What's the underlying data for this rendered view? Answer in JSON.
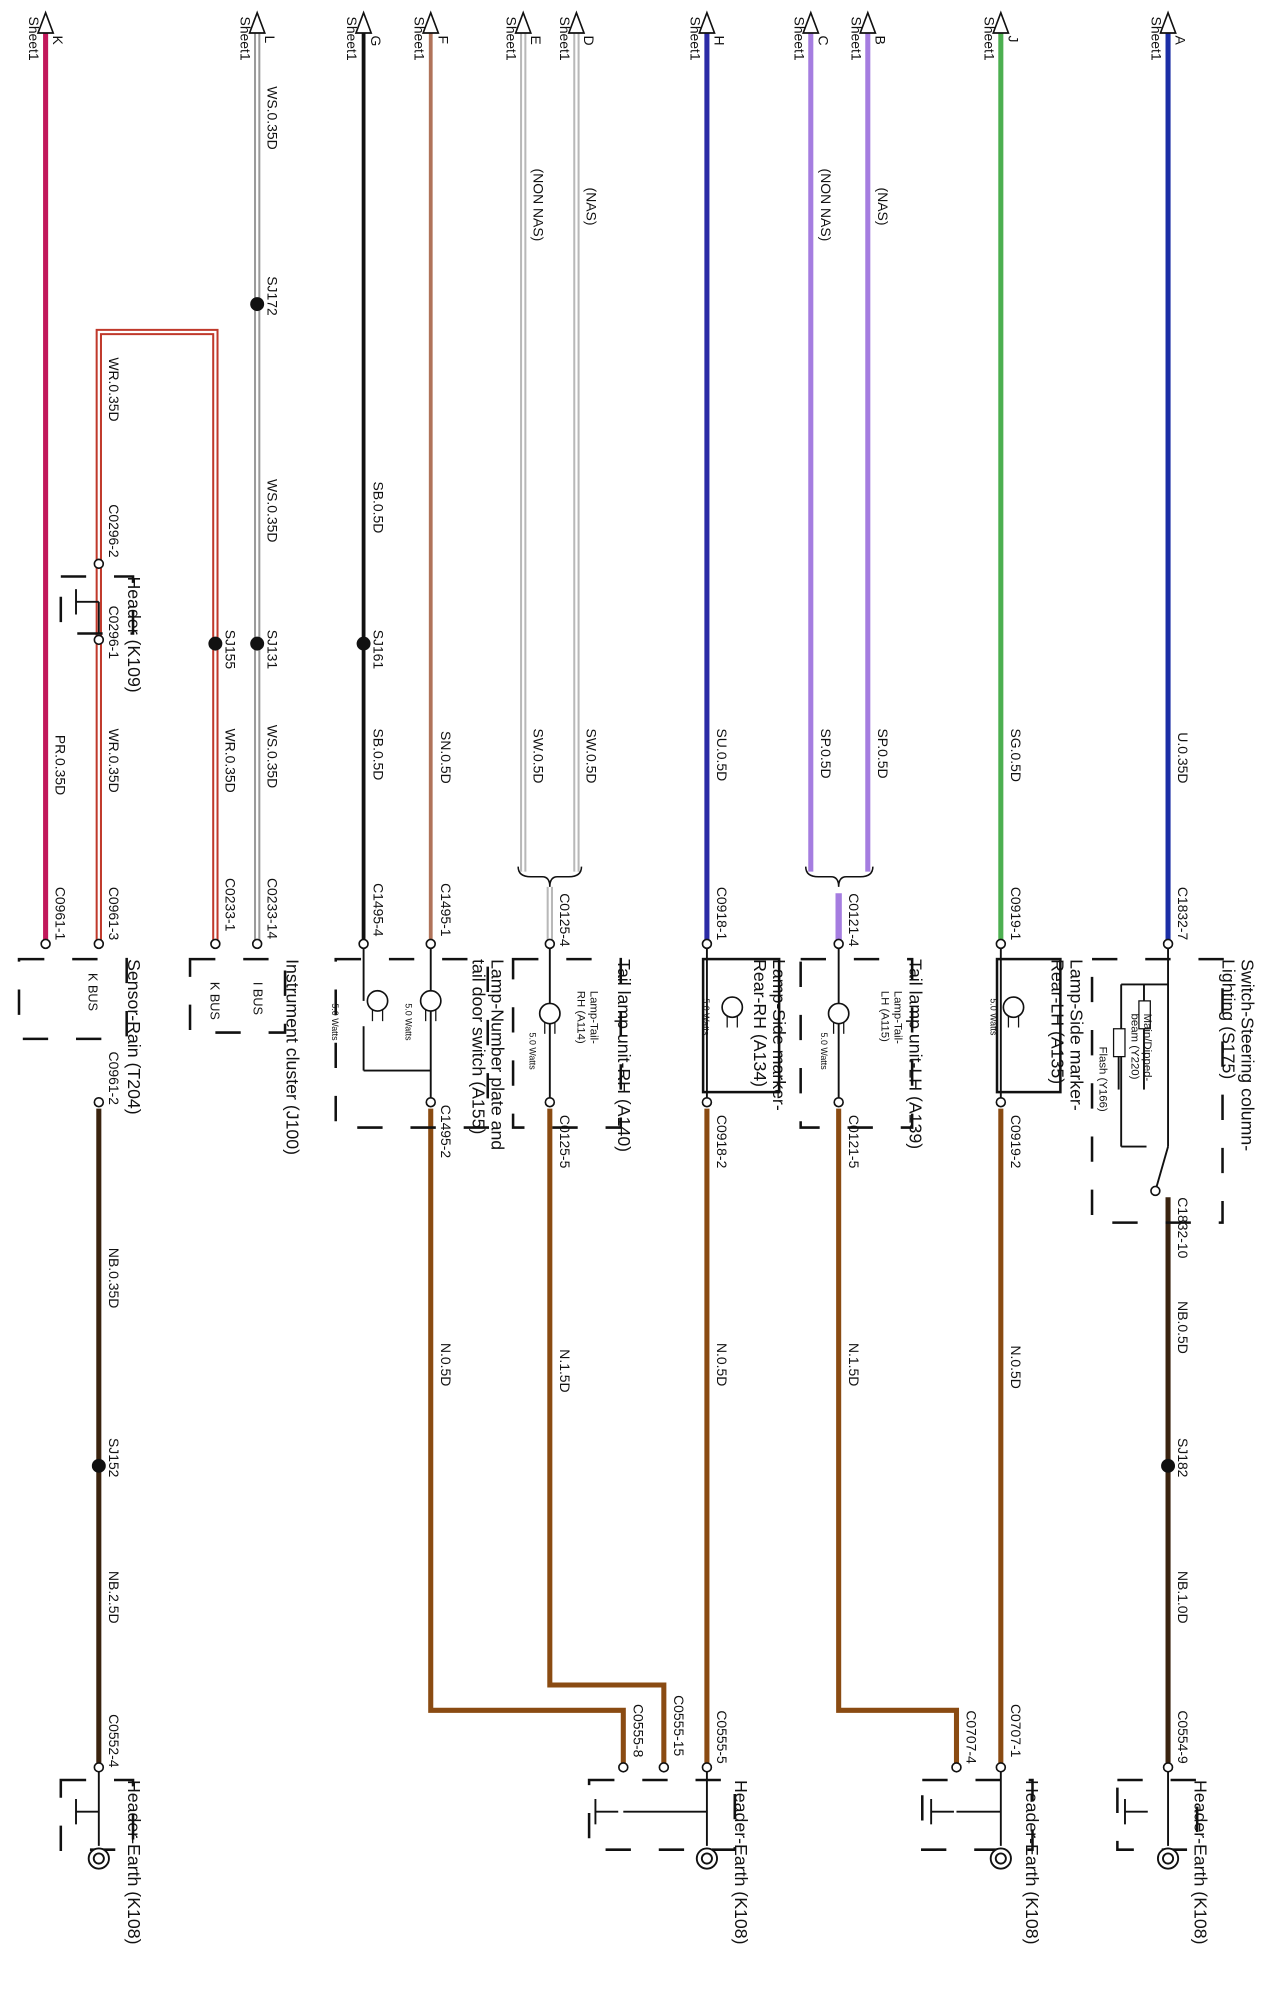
{
  "inputs": [
    {
      "letter": "K",
      "sheet": "Sheet1"
    },
    {
      "letter": "L",
      "sheet": "Sheet1"
    },
    {
      "letter": "G",
      "sheet": "Sheet1"
    },
    {
      "letter": "F",
      "sheet": "Sheet1"
    },
    {
      "letter": "E",
      "sheet": "Sheet1"
    },
    {
      "letter": "D",
      "sheet": "Sheet1"
    },
    {
      "letter": "H",
      "sheet": "Sheet1"
    },
    {
      "letter": "C",
      "sheet": "Sheet1"
    },
    {
      "letter": "B",
      "sheet": "Sheet1"
    },
    {
      "letter": "J",
      "sheet": "Sheet1"
    },
    {
      "letter": "A",
      "sheet": "Sheet1"
    }
  ],
  "wire_labels": [
    "PR.0.35D",
    "WR.0.35D",
    "WR.0.35D",
    "WR.0.35D",
    "WS.0.35D",
    "WS.0.35D",
    "WS.0.35D",
    "SB.0.5D",
    "SB.0.5D",
    "SN.0.5D",
    "(NON NAS)",
    "SW.0.5D",
    "(NAS)",
    "SW.0.5D",
    "SU.0.5D",
    "(NON NAS)",
    "SP.0.5D",
    "(NAS)",
    "SP.0.5D",
    "SG.0.5D",
    "U.0.35D",
    "NB.0.35D",
    "NB.2.5D",
    "N.0.5D",
    "N.1.5D",
    "N.0.5D",
    "N.1.5D",
    "N.0.5D",
    "NB.0.5D",
    "NB.1.0D"
  ],
  "connectors": [
    "C0296-2",
    "C0296-1",
    "C0961-1",
    "C0961-3",
    "C0961-2",
    "C0233-1",
    "C0233-14",
    "C1495-4",
    "C1495-1",
    "C1495-2",
    "C0125-4",
    "C0125-5",
    "C0918-1",
    "C0918-2",
    "C0121-4",
    "C0121-5",
    "C0919-1",
    "C0919-2",
    "C1832-7",
    "C1832-10",
    "C0552-4",
    "C0555-8",
    "C0555-15",
    "C0555-5",
    "C0707-4",
    "C0707-1",
    "C0554-9"
  ],
  "splices": [
    "SJ172",
    "SJ155",
    "SJ131",
    "SJ161",
    "SJ152",
    "SJ182"
  ],
  "components": [
    {
      "lines": [
        "Header (K109)"
      ]
    },
    {
      "lines": [
        "Sensor-Rain (T204)"
      ]
    },
    {
      "lines": [
        "Instrument cluster (J100)"
      ]
    },
    {
      "lines": [
        "Lamp-Number plate and",
        "tail door switch (A155)"
      ]
    },
    {
      "lines": [
        "Tail lamp unit-RH (A140)"
      ]
    },
    {
      "lines": [
        "Lamp-Side marker-",
        "Rear-RH (A134)"
      ]
    },
    {
      "lines": [
        "Tail lamp unit-LH (A139)"
      ]
    },
    {
      "lines": [
        "Lamp-Side marker-",
        "Rear-LH (A135)"
      ]
    },
    {
      "lines": [
        "Switch-Steering column-",
        "Lighting (S175)"
      ]
    },
    {
      "lines": [
        "Header-Earth (K108)"
      ]
    },
    {
      "lines": [
        "Header-Earth (K108)"
      ]
    },
    {
      "lines": [
        "Header-Earth (K108)"
      ]
    },
    {
      "lines": [
        "Header-Earth (K108)"
      ]
    }
  ],
  "parts": [
    {
      "lines": [
        "Lamp-Tail-",
        "RH (A114)"
      ]
    },
    {
      "lines": [
        "Lamp-Tail-",
        "LH (A115)"
      ]
    },
    {
      "lines": [
        "Main/Dipped-",
        "beam (Y220)"
      ]
    },
    {
      "lines": [
        "Flash (Y166)"
      ]
    }
  ],
  "bus_labels": [
    "K BUS",
    "K BUS",
    "I BUS"
  ],
  "ratings": [
    "5.0 Watts",
    "5.0 Watts",
    "5.0 Watts",
    "5.0 Watts",
    "5.0 Watts",
    "5.0 Watts"
  ]
}
